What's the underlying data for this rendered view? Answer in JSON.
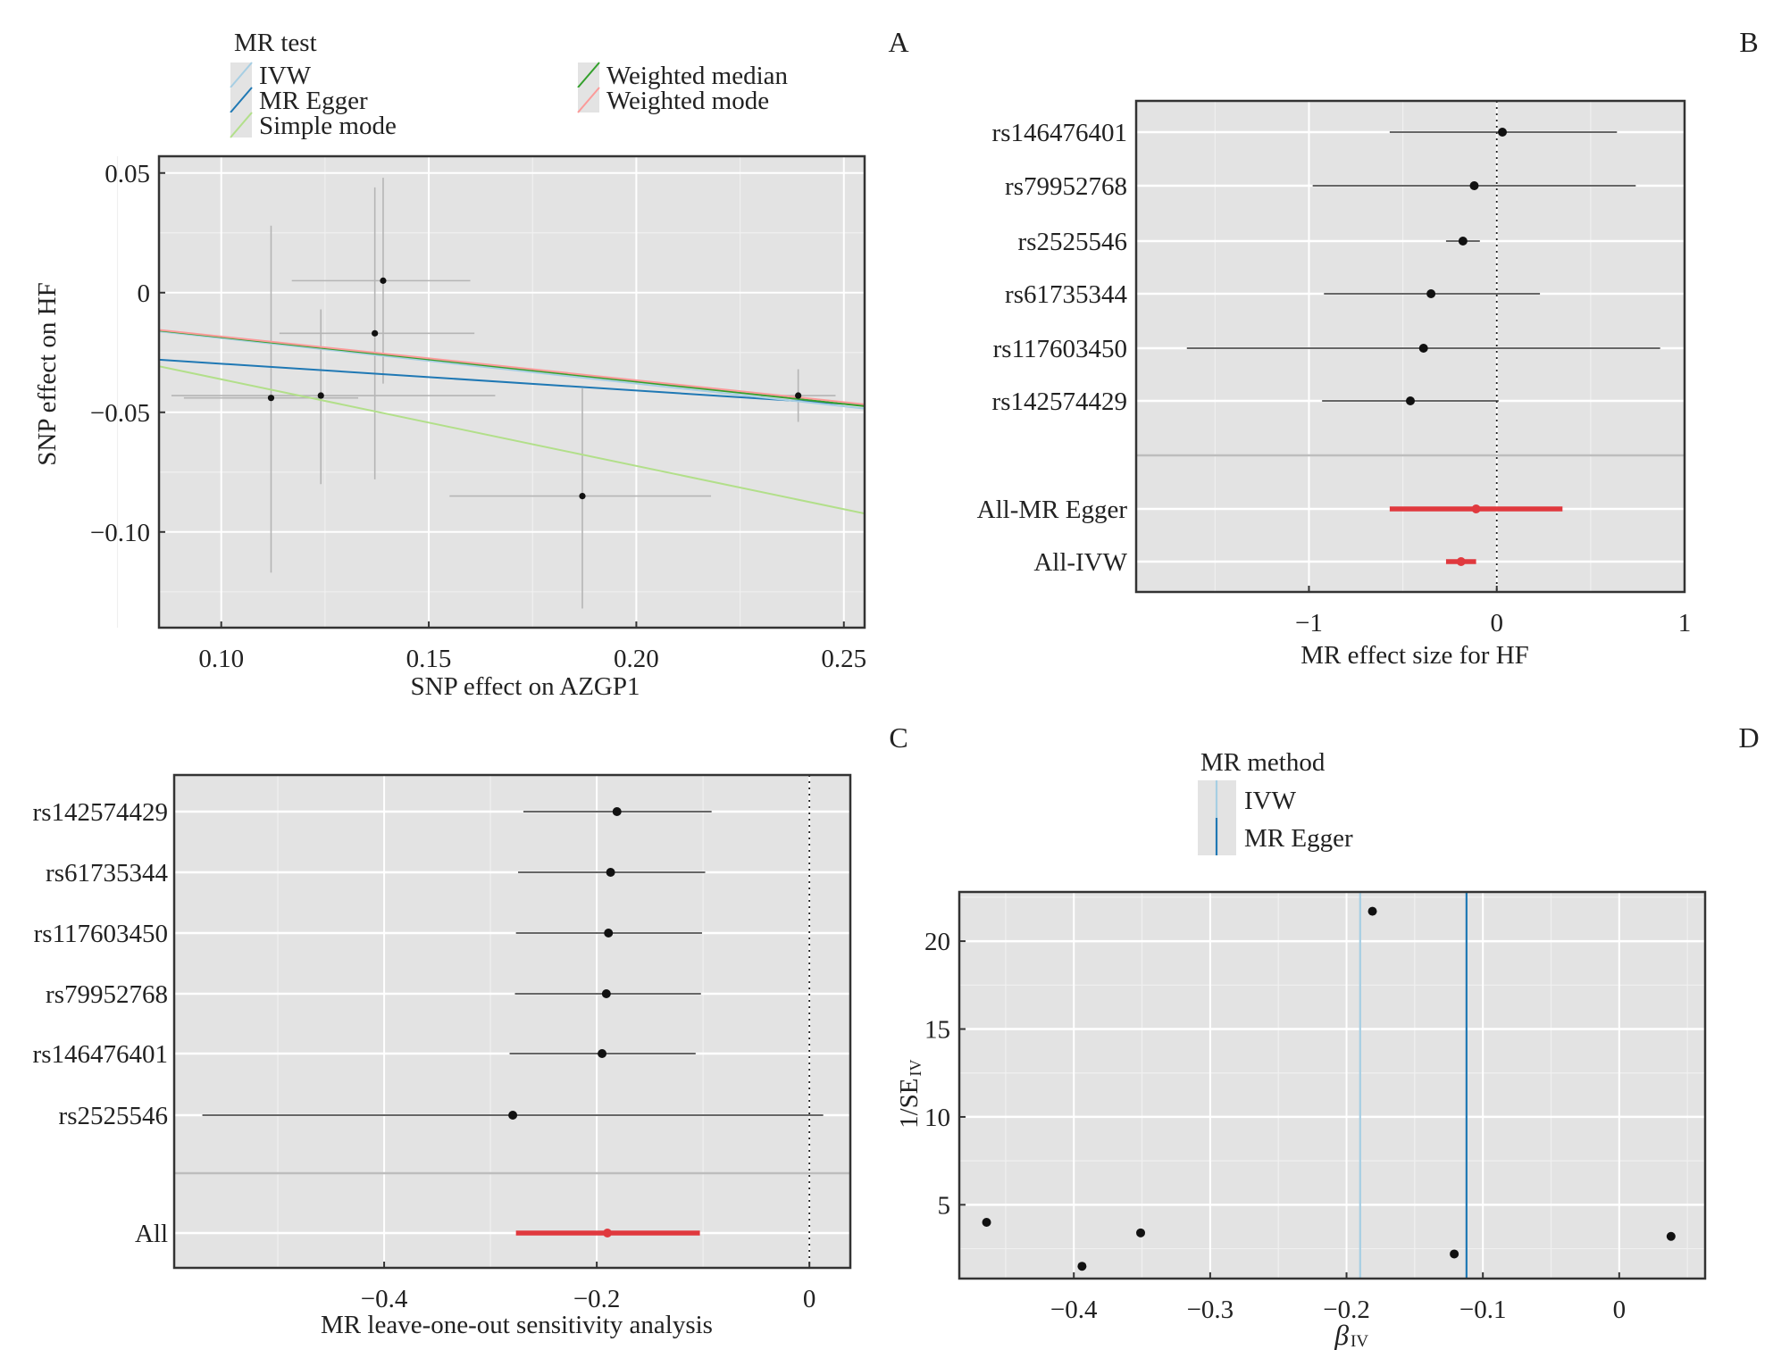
{
  "chart_data": [
    {
      "panel": "A",
      "type": "scatter",
      "xlabel": "SNP effect on AZGP1",
      "ylabel": "SNP effect on HF",
      "xlim": [
        0.085,
        0.255
      ],
      "ylim": [
        -0.14,
        0.057
      ],
      "xticks": [
        0.1,
        0.15,
        0.2,
        0.25
      ],
      "xtick_labels": [
        "0.10",
        "0.15",
        "0.20",
        "0.25"
      ],
      "yticks": [
        0.05,
        0,
        -0.05,
        -0.1
      ],
      "ytick_labels": [
        "0.05",
        "0",
        "−0.05",
        "−0.10"
      ],
      "grid": true,
      "legend": {
        "title": "MR test",
        "position": "top",
        "entries": [
          {
            "name": "IVW",
            "color": "#a6cee3"
          },
          {
            "name": "MR Egger",
            "color": "#1f78b4"
          },
          {
            "name": "Simple mode",
            "color": "#b2df8a"
          },
          {
            "name": "Weighted median",
            "color": "#33a02c"
          },
          {
            "name": "Weighted mode",
            "color": "#fb9a99"
          }
        ]
      },
      "points": [
        {
          "x": 0.112,
          "y": -0.044,
          "x_lo": 0.091,
          "x_hi": 0.133,
          "y_lo": -0.117,
          "y_hi": 0.028
        },
        {
          "x": 0.124,
          "y": -0.043,
          "x_lo": 0.088,
          "x_hi": 0.166,
          "y_lo": -0.08,
          "y_hi": -0.007
        },
        {
          "x": 0.137,
          "y": -0.017,
          "x_lo": 0.114,
          "x_hi": 0.161,
          "y_lo": -0.078,
          "y_hi": 0.044
        },
        {
          "x": 0.139,
          "y": 0.005,
          "x_lo": 0.117,
          "x_hi": 0.16,
          "y_lo": -0.038,
          "y_hi": 0.048
        },
        {
          "x": 0.187,
          "y": -0.085,
          "x_lo": 0.155,
          "x_hi": 0.218,
          "y_lo": -0.132,
          "y_hi": -0.04
        },
        {
          "x": 0.239,
          "y": -0.043,
          "x_lo": 0.23,
          "x_hi": 0.248,
          "y_lo": -0.054,
          "y_hi": -0.032
        }
      ],
      "lines": [
        {
          "name": "IVW",
          "intercept": 0,
          "slope": -0.19
        },
        {
          "name": "MR Egger",
          "intercept": -0.0185,
          "slope": -0.112
        },
        {
          "name": "Simple mode",
          "intercept": 0,
          "slope": -0.362
        },
        {
          "name": "Weighted median",
          "intercept": 0,
          "slope": -0.186
        },
        {
          "name": "Weighted mode",
          "intercept": 0,
          "slope": -0.183
        }
      ],
      "panel_label": "A"
    },
    {
      "panel": "B",
      "type": "forest",
      "xlabel": "MR effect size for HF",
      "xlim": [
        -1.92,
        1.0
      ],
      "xticks": [
        -1,
        0,
        1
      ],
      "xtick_labels": [
        "−1",
        "0",
        "1"
      ],
      "reference_line": 0,
      "grid": true,
      "rows": [
        {
          "label": "rs146476401",
          "est": 0.03,
          "lo": -0.57,
          "hi": 0.64,
          "highlight": false
        },
        {
          "label": "rs79952768",
          "est": -0.12,
          "lo": -0.98,
          "hi": 0.74,
          "highlight": false
        },
        {
          "label": "rs2525546",
          "est": -0.18,
          "lo": -0.27,
          "hi": -0.09,
          "highlight": false
        },
        {
          "label": "rs61735344",
          "est": -0.35,
          "lo": -0.92,
          "hi": 0.23,
          "highlight": false
        },
        {
          "label": "rs117603450",
          "est": -0.39,
          "lo": -1.65,
          "hi": 0.87,
          "highlight": false
        },
        {
          "label": "rs142574429",
          "est": -0.46,
          "lo": -0.93,
          "hi": 0.01,
          "highlight": false
        },
        {
          "label": "All-MR Egger",
          "est": -0.11,
          "lo": -0.57,
          "hi": 0.35,
          "highlight": true
        },
        {
          "label": "All-IVW",
          "est": -0.19,
          "lo": -0.27,
          "hi": -0.11,
          "highlight": true
        }
      ],
      "highlight_color": "#e0393e",
      "panel_label": "B"
    },
    {
      "panel": "C",
      "type": "forest",
      "xlabel": "MR leave-one-out sensitivity analysis",
      "xlim": [
        -0.5975,
        0.0385
      ],
      "xticks": [
        -0.4,
        -0.2,
        0
      ],
      "xtick_labels": [
        "−0.4",
        "−0.2",
        "0"
      ],
      "reference_line": 0,
      "grid": true,
      "rows": [
        {
          "label": "rs142574429",
          "est": -0.181,
          "lo": -0.269,
          "hi": -0.092,
          "highlight": false
        },
        {
          "label": "rs61735344",
          "est": -0.187,
          "lo": -0.274,
          "hi": -0.098,
          "highlight": false
        },
        {
          "label": "rs117603450",
          "est": -0.189,
          "lo": -0.276,
          "hi": -0.101,
          "highlight": false
        },
        {
          "label": "rs79952768",
          "est": -0.191,
          "lo": -0.277,
          "hi": -0.102,
          "highlight": false
        },
        {
          "label": "rs146476401",
          "est": -0.195,
          "lo": -0.282,
          "hi": -0.107,
          "highlight": false
        },
        {
          "label": "rs2525546",
          "est": -0.279,
          "lo": -0.571,
          "hi": 0.013,
          "highlight": false
        },
        {
          "label": "All",
          "est": -0.19,
          "lo": -0.276,
          "hi": -0.103,
          "highlight": true
        }
      ],
      "highlight_color": "#e0393e",
      "panel_label": "C"
    },
    {
      "panel": "D",
      "type": "scatter",
      "xlabel_main": "β",
      "xlabel_sub": "IV",
      "ylabel_main": "1/SE",
      "ylabel_sub": "IV",
      "xlim": [
        -0.484,
        0.063
      ],
      "ylim": [
        0.8,
        22.8
      ],
      "xticks": [
        -0.4,
        -0.3,
        -0.2,
        -0.1,
        0
      ],
      "xtick_labels": [
        "−0.4",
        "−0.3",
        "−0.2",
        "−0.1",
        "0"
      ],
      "yticks": [
        5,
        10,
        15,
        20
      ],
      "ytick_labels": [
        "5",
        "10",
        "15",
        "20"
      ],
      "grid": true,
      "legend": {
        "title": "MR method",
        "position": "top",
        "entries": [
          {
            "name": "IVW",
            "color": "#a6cee3"
          },
          {
            "name": "MR Egger",
            "color": "#1f78b4"
          }
        ]
      },
      "points": [
        {
          "x": -0.464,
          "y": 4.0
        },
        {
          "x": -0.394,
          "y": 1.5
        },
        {
          "x": -0.351,
          "y": 3.4
        },
        {
          "x": -0.181,
          "y": 21.7
        },
        {
          "x": -0.121,
          "y": 2.2
        },
        {
          "x": 0.038,
          "y": 3.2
        }
      ],
      "vlines": [
        {
          "name": "IVW",
          "x": -0.19
        },
        {
          "name": "MR Egger",
          "x": -0.112
        }
      ],
      "panel_label": "D"
    }
  ]
}
